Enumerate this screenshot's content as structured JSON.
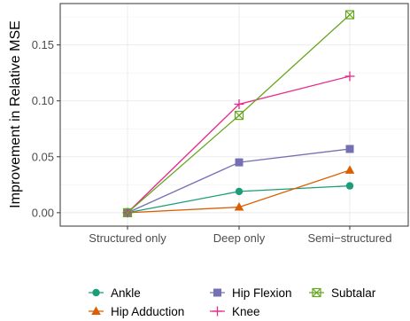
{
  "chart_data": {
    "type": "line",
    "categories": [
      "Structured only",
      "Deep only",
      "Semi−structured"
    ],
    "ylabel": "Improvement in Relative MSE",
    "xlabel": "",
    "ylim": [
      -0.012,
      0.187
    ],
    "yticks": [
      "0.00",
      "0.05",
      "0.10",
      "0.15"
    ],
    "ytick_values": [
      0.0,
      0.05,
      0.1,
      0.15
    ],
    "grid": true,
    "legend_position": "bottom",
    "series": [
      {
        "name": "Ankle",
        "values": [
          0.0,
          0.019,
          0.024
        ],
        "color": "#1b9e77",
        "marker": "circle"
      },
      {
        "name": "Hip Adduction",
        "values": [
          0.0,
          0.005,
          0.038
        ],
        "color": "#d95f02",
        "marker": "triangle"
      },
      {
        "name": "Hip Flexion",
        "values": [
          0.0,
          0.045,
          0.057
        ],
        "color": "#7570b3",
        "marker": "square"
      },
      {
        "name": "Knee",
        "values": [
          0.0,
          0.097,
          0.122
        ],
        "color": "#e7298a",
        "marker": "plus"
      },
      {
        "name": "Subtalar",
        "values": [
          0.0,
          0.087,
          0.177
        ],
        "color": "#66a61e",
        "marker": "boxed-x"
      }
    ]
  }
}
